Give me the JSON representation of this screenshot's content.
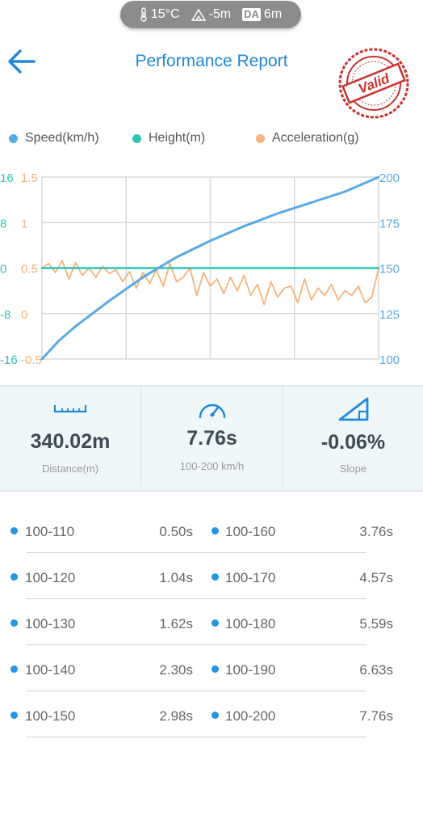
{
  "status": {
    "temperature": "15°C",
    "elevation": "-5m",
    "da_label": "DA",
    "density_altitude": "6m"
  },
  "header": {
    "title": "Performance Report",
    "stamp_text": "Valid",
    "stamp_color": "#c8322f"
  },
  "legend": [
    {
      "label": "Speed(km/h)",
      "color": "#5aa9e6"
    },
    {
      "label": "Height(m)",
      "color": "#2ec4b6"
    },
    {
      "label": "Acceleration(g)",
      "color": "#f7b27a"
    }
  ],
  "chart_data": {
    "type": "line",
    "series": [
      {
        "name": "Speed(km/h)",
        "axis": "right",
        "color": "#5aa9e6",
        "x": [
          0,
          0.05,
          0.1,
          0.2,
          0.3,
          0.4,
          0.5,
          0.6,
          0.7,
          0.8,
          0.9,
          1.0
        ],
        "values": [
          100,
          110,
          118,
          132,
          145,
          156,
          165,
          173,
          180,
          186,
          192,
          200
        ]
      },
      {
        "name": "Height(m)",
        "axis": "left-height",
        "color": "#2ec4b6",
        "x": [
          0,
          0.25,
          0.5,
          0.75,
          1.0
        ],
        "values": [
          0,
          0,
          0,
          0,
          0
        ]
      },
      {
        "name": "Acceleration(g)",
        "axis": "left-accel",
        "color": "#f7b27a",
        "x": [
          0,
          0.02,
          0.04,
          0.06,
          0.08,
          0.1,
          0.12,
          0.14,
          0.16,
          0.18,
          0.2,
          0.22,
          0.24,
          0.26,
          0.28,
          0.3,
          0.32,
          0.34,
          0.36,
          0.38,
          0.4,
          0.42,
          0.44,
          0.46,
          0.48,
          0.5,
          0.52,
          0.54,
          0.56,
          0.58,
          0.6,
          0.62,
          0.64,
          0.66,
          0.68,
          0.7,
          0.72,
          0.74,
          0.76,
          0.78,
          0.8,
          0.82,
          0.84,
          0.86,
          0.88,
          0.9,
          0.92,
          0.94,
          0.96,
          0.98,
          1.0
        ],
        "values": [
          0.5,
          0.55,
          0.45,
          0.58,
          0.38,
          0.56,
          0.42,
          0.5,
          0.4,
          0.52,
          0.44,
          0.48,
          0.35,
          0.46,
          0.28,
          0.45,
          0.33,
          0.48,
          0.3,
          0.55,
          0.35,
          0.4,
          0.5,
          0.2,
          0.45,
          0.3,
          0.38,
          0.22,
          0.4,
          0.25,
          0.42,
          0.2,
          0.32,
          0.1,
          0.35,
          0.18,
          0.28,
          0.3,
          0.12,
          0.38,
          0.15,
          0.28,
          0.2,
          0.32,
          0.15,
          0.25,
          0.2,
          0.3,
          0.12,
          0.18,
          0.5
        ]
      }
    ],
    "axes": {
      "left_height": {
        "ticks": [
          "16",
          "8",
          "0",
          "-8",
          "-16"
        ],
        "ylim": [
          -16,
          16
        ],
        "color": "#2ec4b6"
      },
      "left_accel": {
        "ticks": [
          "1.5",
          "1",
          "0.5",
          "0",
          "-0.5"
        ],
        "ylim": [
          -0.5,
          1.5
        ],
        "color": "#f7b27a"
      },
      "right_speed": {
        "ticks": [
          "200",
          "175",
          "150",
          "125",
          "100"
        ],
        "ylim": [
          100,
          200
        ],
        "color": "#5aa9e6"
      }
    },
    "grid": true
  },
  "stats": [
    {
      "value": "340.02m",
      "label": "Distance(m)",
      "icon": "ruler-icon"
    },
    {
      "value": "7.76s",
      "label": "100-200 km/h",
      "icon": "speedometer-icon"
    },
    {
      "value": "-0.06%",
      "label": "Slope",
      "icon": "slope-icon"
    }
  ],
  "splits": {
    "left": [
      {
        "range": "100-110",
        "time": "0.50s"
      },
      {
        "range": "100-120",
        "time": "1.04s"
      },
      {
        "range": "100-130",
        "time": "1.62s"
      },
      {
        "range": "100-140",
        "time": "2.30s"
      },
      {
        "range": "100-150",
        "time": "2.98s"
      }
    ],
    "right": [
      {
        "range": "100-160",
        "time": "3.76s"
      },
      {
        "range": "100-170",
        "time": "4.57s"
      },
      {
        "range": "100-180",
        "time": "5.59s"
      },
      {
        "range": "100-190",
        "time": "6.63s"
      },
      {
        "range": "100-200",
        "time": "7.76s"
      }
    ]
  }
}
